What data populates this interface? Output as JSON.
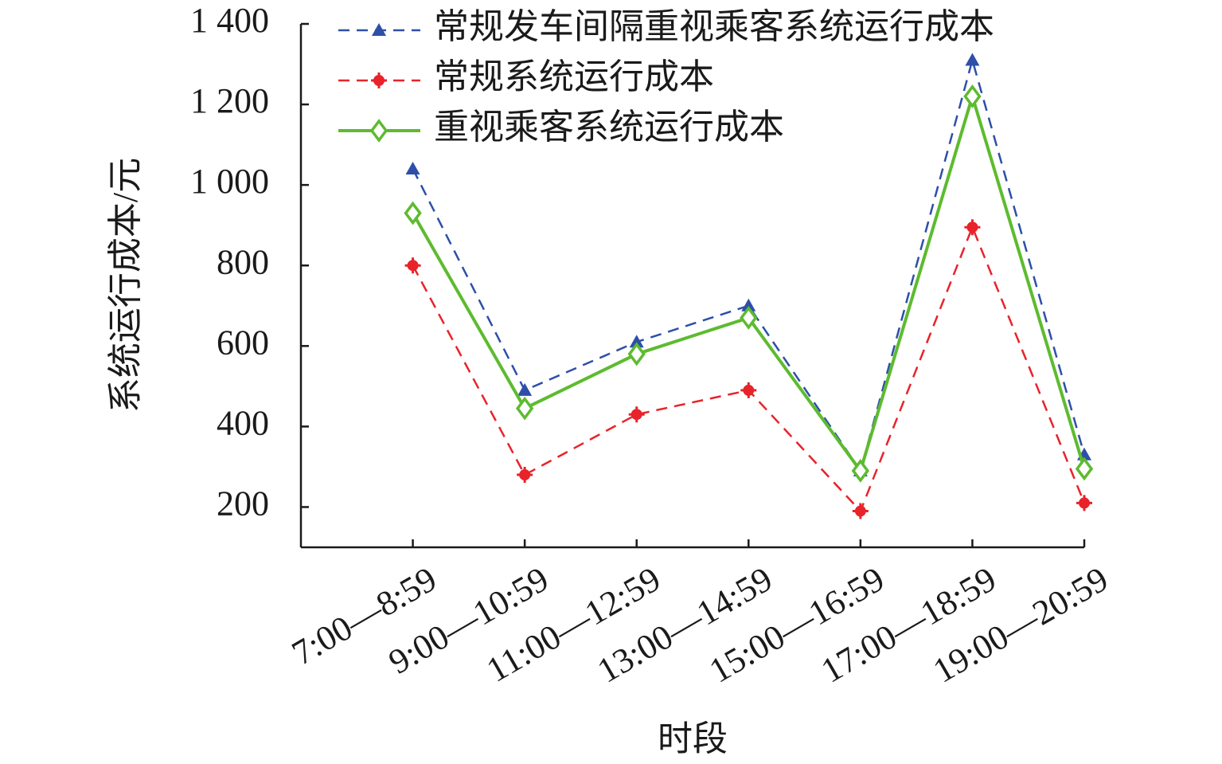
{
  "chart_data": {
    "type": "line",
    "x_label": "时段",
    "y_label": "系统运行成本/元",
    "categories": [
      "7:00—8:59",
      "9:00—10:59",
      "11:00—12:59",
      "13:00—14:59",
      "15:00—16:59",
      "17:00—18:59",
      "19:00—20:59"
    ],
    "series": [
      {
        "name": "常规发车间隔重视乘客系统运行成本",
        "color": "#2e4fa8",
        "dash": true,
        "marker": "triangle",
        "values": [
          1040,
          490,
          610,
          700,
          290,
          1310,
          330
        ]
      },
      {
        "name": "常规系统运行成本",
        "color": "#e8232a",
        "dash": true,
        "marker": "dot",
        "values": [
          800,
          280,
          430,
          490,
          190,
          895,
          210
        ]
      },
      {
        "name": "重视乘客系统运行成本",
        "color": "#5dbb2f",
        "dash": false,
        "marker": "diamond",
        "values": [
          930,
          445,
          580,
          670,
          290,
          1220,
          295
        ]
      }
    ],
    "ylim": [
      100,
      1400
    ],
    "yticks": [
      200,
      400,
      600,
      800,
      {
        "value": 1000,
        "label": "1 000"
      },
      {
        "value": 1200,
        "label": "1 200"
      },
      {
        "value": 1400,
        "label": "1 400"
      }
    ]
  }
}
